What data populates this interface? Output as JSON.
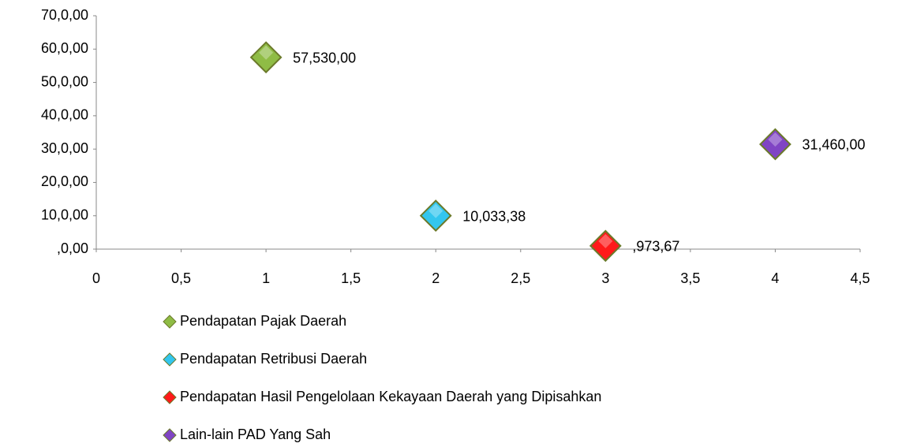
{
  "chart_data": {
    "type": "scatter",
    "series": [
      {
        "name": "Pendapatan Pajak Daerah",
        "color": "#8fbc45",
        "x": [
          1
        ],
        "values": [
          57530
        ],
        "value_labels": [
          "57,530,00"
        ]
      },
      {
        "name": "Pendapatan Retribusi Daerah",
        "color": "#33c6ee",
        "x": [
          2
        ],
        "values": [
          10033.38
        ],
        "value_labels": [
          "10,033,38"
        ]
      },
      {
        "name": "Pendapatan Hasil Pengelolaan Kekayaan Daerah yang Dipisahkan",
        "color": "#ff1a1a",
        "x": [
          3
        ],
        "values": [
          973.67
        ],
        "value_labels": [
          ",973,67"
        ]
      },
      {
        "name": "Lain-lain PAD Yang Sah",
        "color": "#8044c4",
        "x": [
          4
        ],
        "values": [
          31460
        ],
        "value_labels": [
          "31,460,00"
        ]
      }
    ],
    "xlim": [
      0,
      4.5
    ],
    "xticks": [
      0,
      {
        "value": 0.5,
        "label": "0,5"
      },
      1,
      {
        "value": 1.5,
        "label": "1,5"
      },
      2,
      {
        "value": 2.5,
        "label": "2,5"
      },
      3,
      {
        "value": 3.5,
        "label": "3,5"
      },
      4,
      {
        "value": 4.5,
        "label": "4,5"
      }
    ],
    "ylim": [
      0,
      70000
    ],
    "yticks": [
      {
        "value": 0,
        "label": ",0,00"
      },
      {
        "value": 10000,
        "label": "10,0,00"
      },
      {
        "value": 20000,
        "label": "20,0,00"
      },
      {
        "value": 30000,
        "label": "30,0,00"
      },
      {
        "value": 40000,
        "label": "40,0,00"
      },
      {
        "value": 50000,
        "label": "50,0,00"
      },
      {
        "value": 60000,
        "label": "60,0,00"
      },
      {
        "value": 70000,
        "label": "70,0,00"
      }
    ],
    "grid": false
  }
}
